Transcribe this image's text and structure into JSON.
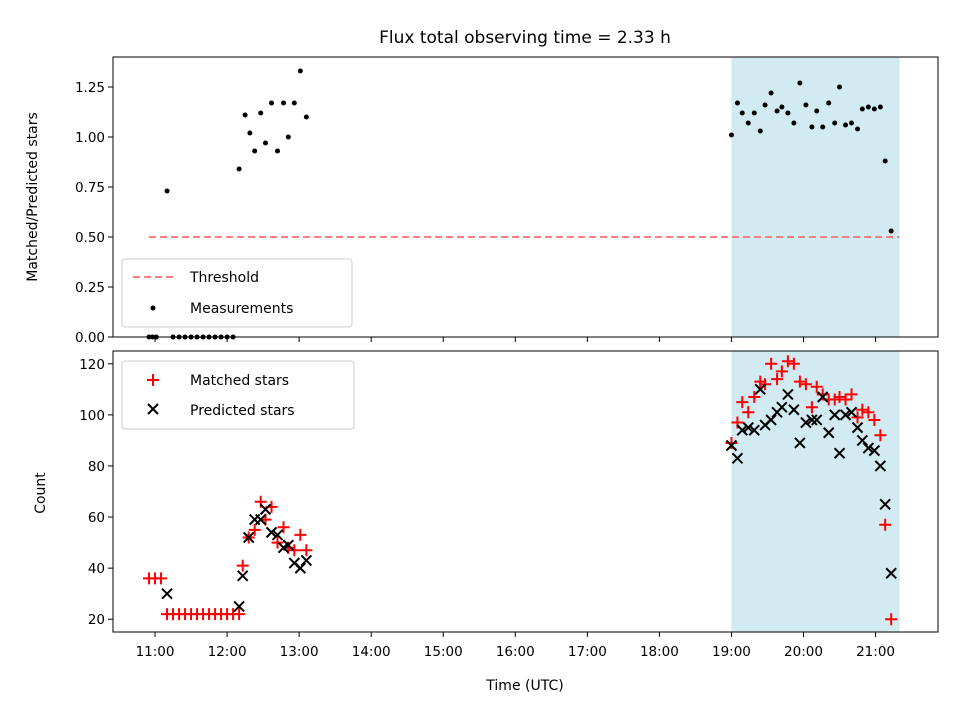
{
  "chart_data": [
    {
      "type": "scatter",
      "title": "Flux total observing time = 2.33 h",
      "ylabel": "Matched/Predicted stars",
      "xlim": [
        "10:25",
        "21:52"
      ],
      "ylim": [
        0,
        1.4
      ],
      "yticks": [
        "0.00",
        "0.25",
        "0.50",
        "0.75",
        "1.00",
        "1.25"
      ],
      "shaded_span": [
        "19:00",
        "21:20"
      ],
      "shade_color": "#add8e6",
      "legend_position": "lower-left",
      "threshold": {
        "name": "Threshold",
        "value": 0.5,
        "x_range": [
          "10:55",
          "21:20"
        ],
        "color": "#ff7f7f"
      },
      "measurements": {
        "name": "Measurements",
        "color": "#000000",
        "points": [
          [
            "10:55",
            0.0
          ],
          [
            "10:58",
            0.0
          ],
          [
            "11:01",
            0.0
          ],
          [
            "11:10",
            0.73
          ],
          [
            "11:15",
            0.0
          ],
          [
            "11:20",
            0.0
          ],
          [
            "11:25",
            0.0
          ],
          [
            "11:30",
            0.0
          ],
          [
            "11:35",
            0.0
          ],
          [
            "11:40",
            0.0
          ],
          [
            "11:45",
            0.0
          ],
          [
            "11:50",
            0.0
          ],
          [
            "11:55",
            0.0
          ],
          [
            "12:00",
            0.0
          ],
          [
            "12:05",
            0.0
          ],
          [
            "12:10",
            0.84
          ],
          [
            "12:15",
            1.11
          ],
          [
            "12:19",
            1.02
          ],
          [
            "12:23",
            0.93
          ],
          [
            "12:28",
            1.12
          ],
          [
            "12:32",
            0.97
          ],
          [
            "12:37",
            1.17
          ],
          [
            "12:42",
            0.93
          ],
          [
            "12:47",
            1.17
          ],
          [
            "12:51",
            1.0
          ],
          [
            "12:56",
            1.17
          ],
          [
            "13:01",
            1.33
          ],
          [
            "13:06",
            1.1
          ],
          [
            "19:00",
            1.01
          ],
          [
            "19:05",
            1.17
          ],
          [
            "19:09",
            1.12
          ],
          [
            "19:14",
            1.07
          ],
          [
            "19:19",
            1.12
          ],
          [
            "19:24",
            1.03
          ],
          [
            "19:28",
            1.16
          ],
          [
            "19:33",
            1.22
          ],
          [
            "19:38",
            1.13
          ],
          [
            "19:42",
            1.15
          ],
          [
            "19:47",
            1.12
          ],
          [
            "19:52",
            1.07
          ],
          [
            "19:57",
            1.27
          ],
          [
            "20:02",
            1.16
          ],
          [
            "20:07",
            1.05
          ],
          [
            "20:11",
            1.13
          ],
          [
            "20:16",
            1.05
          ],
          [
            "20:21",
            1.17
          ],
          [
            "20:26",
            1.07
          ],
          [
            "20:30",
            1.25
          ],
          [
            "20:35",
            1.06
          ],
          [
            "20:40",
            1.07
          ],
          [
            "20:45",
            1.04
          ],
          [
            "20:49",
            1.14
          ],
          [
            "20:54",
            1.15
          ],
          [
            "20:59",
            1.14
          ],
          [
            "21:04",
            1.15
          ],
          [
            "21:08",
            0.88
          ],
          [
            "21:13",
            0.53
          ]
        ]
      }
    },
    {
      "type": "scatter",
      "xlabel": "Time (UTC)",
      "ylabel": "Count",
      "xlim": [
        "10:25",
        "21:52"
      ],
      "ylim": [
        15,
        125
      ],
      "xticks": [
        "11:00",
        "12:00",
        "13:00",
        "14:00",
        "15:00",
        "16:00",
        "17:00",
        "18:00",
        "19:00",
        "20:00",
        "21:00"
      ],
      "yticks": [
        "20",
        "40",
        "60",
        "80",
        "100",
        "120"
      ],
      "shaded_span": [
        "19:00",
        "21:20"
      ],
      "legend_position": "top-left",
      "series": [
        {
          "name": "Matched stars",
          "marker": "plus",
          "color": "#ff0000",
          "points": [
            [
              "10:55",
              36
            ],
            [
              "11:00",
              36
            ],
            [
              "11:05",
              36
            ],
            [
              "11:10",
              22
            ],
            [
              "11:15",
              22
            ],
            [
              "11:20",
              22
            ],
            [
              "11:25",
              22
            ],
            [
              "11:30",
              22
            ],
            [
              "11:35",
              22
            ],
            [
              "11:40",
              22
            ],
            [
              "11:45",
              22
            ],
            [
              "11:50",
              22
            ],
            [
              "11:55",
              22
            ],
            [
              "12:00",
              22
            ],
            [
              "12:05",
              22
            ],
            [
              "12:10",
              22
            ],
            [
              "12:13",
              41
            ],
            [
              "12:18",
              52
            ],
            [
              "12:23",
              55
            ],
            [
              "12:28",
              66
            ],
            [
              "12:32",
              59
            ],
            [
              "12:37",
              64
            ],
            [
              "12:42",
              50
            ],
            [
              "12:47",
              56
            ],
            [
              "12:51",
              48
            ],
            [
              "12:56",
              47
            ],
            [
              "13:01",
              53
            ],
            [
              "13:06",
              47
            ],
            [
              "19:00",
              89
            ],
            [
              "19:05",
              97
            ],
            [
              "19:09",
              105
            ],
            [
              "19:14",
              101
            ],
            [
              "19:19",
              107
            ],
            [
              "19:24",
              113
            ],
            [
              "19:28",
              112
            ],
            [
              "19:33",
              120
            ],
            [
              "19:38",
              114
            ],
            [
              "19:42",
              117
            ],
            [
              "19:47",
              121
            ],
            [
              "19:52",
              120
            ],
            [
              "19:57",
              113
            ],
            [
              "20:02",
              112
            ],
            [
              "20:07",
              103
            ],
            [
              "20:11",
              111
            ],
            [
              "20:16",
              108
            ],
            [
              "20:21",
              106
            ],
            [
              "20:26",
              106
            ],
            [
              "20:30",
              107
            ],
            [
              "20:35",
              106
            ],
            [
              "20:40",
              108
            ],
            [
              "20:45",
              99
            ],
            [
              "20:49",
              102
            ],
            [
              "20:54",
              101
            ],
            [
              "20:59",
              98
            ],
            [
              "21:04",
              92
            ],
            [
              "21:08",
              57
            ],
            [
              "21:13",
              20
            ]
          ]
        },
        {
          "name": "Predicted stars",
          "marker": "x",
          "color": "#000000",
          "points": [
            [
              "11:10",
              30
            ],
            [
              "12:10",
              25
            ],
            [
              "12:13",
              37
            ],
            [
              "12:18",
              52
            ],
            [
              "12:23",
              59
            ],
            [
              "12:28",
              59
            ],
            [
              "12:32",
              63
            ],
            [
              "12:37",
              54
            ],
            [
              "12:42",
              53
            ],
            [
              "12:47",
              48
            ],
            [
              "12:51",
              49
            ],
            [
              "12:56",
              42
            ],
            [
              "13:01",
              40
            ],
            [
              "13:06",
              43
            ],
            [
              "19:00",
              88
            ],
            [
              "19:05",
              83
            ],
            [
              "19:09",
              94
            ],
            [
              "19:14",
              95
            ],
            [
              "19:19",
              94
            ],
            [
              "19:24",
              110
            ],
            [
              "19:28",
              96
            ],
            [
              "19:33",
              98
            ],
            [
              "19:38",
              101
            ],
            [
              "19:42",
              103
            ],
            [
              "19:47",
              108
            ],
            [
              "19:52",
              102
            ],
            [
              "19:57",
              89
            ],
            [
              "20:02",
              97
            ],
            [
              "20:07",
              98
            ],
            [
              "20:11",
              98
            ],
            [
              "20:16",
              107
            ],
            [
              "20:21",
              93
            ],
            [
              "20:26",
              100
            ],
            [
              "20:30",
              85
            ],
            [
              "20:35",
              100
            ],
            [
              "20:40",
              101
            ],
            [
              "20:45",
              95
            ],
            [
              "20:49",
              90
            ],
            [
              "20:54",
              87
            ],
            [
              "20:59",
              86
            ],
            [
              "21:04",
              80
            ],
            [
              "21:08",
              65
            ],
            [
              "21:13",
              38
            ]
          ]
        }
      ]
    }
  ]
}
